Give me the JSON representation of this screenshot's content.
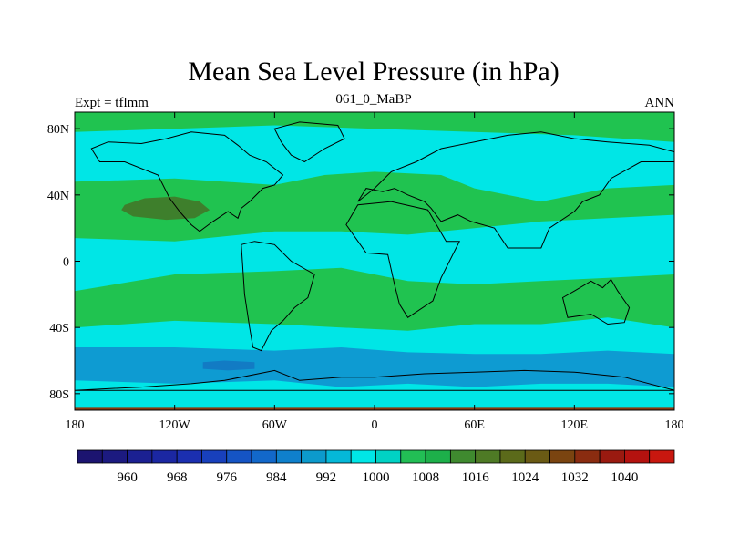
{
  "chart_data": {
    "type": "heatmap",
    "title": "Mean Sea Level Pressure (in hPa)",
    "left_label": "Expt = tflmm",
    "center_label": "061_0_MaBP",
    "right_label": "ANN",
    "x_axis": {
      "range": [
        -180,
        180
      ],
      "ticks": [
        -180,
        -120,
        -60,
        0,
        60,
        120,
        180
      ],
      "tick_labels": [
        "180",
        "120W",
        "60W",
        "0",
        "60E",
        "120E",
        "180"
      ]
    },
    "y_axis": {
      "range": [
        -90,
        90
      ],
      "ticks": [
        80,
        40,
        0,
        -40,
        -80
      ],
      "tick_labels": [
        "80N",
        "40N",
        "0",
        "40S",
        "80S"
      ]
    },
    "colorbar": {
      "units": "hPa",
      "levels": [
        956,
        960,
        964,
        968,
        972,
        976,
        980,
        984,
        988,
        992,
        996,
        1000,
        1004,
        1008,
        1012,
        1016,
        1020,
        1024,
        1028,
        1032,
        1036,
        1040,
        1044
      ],
      "colors": [
        "#1c1470",
        "#1c1a80",
        "#1b2092",
        "#1b27a2",
        "#1b2fb0",
        "#1840bc",
        "#1554c4",
        "#1268ca",
        "#0f80cc",
        "#0c9acc",
        "#05b8d8",
        "#00e6e6",
        "#00d2c4",
        "#22be55",
        "#1db04a",
        "#3f8a2f",
        "#4e7a25",
        "#5b6a1a",
        "#6a5a14",
        "#7a4410",
        "#8a2c10",
        "#9a1a10",
        "#b4120f",
        "#c8170f"
      ],
      "labels": [
        "960",
        "968",
        "976",
        "984",
        "992",
        "1000",
        "1008",
        "1016",
        "1024",
        "1032",
        "1040"
      ],
      "label_values": [
        960,
        968,
        976,
        984,
        992,
        1000,
        1008,
        1016,
        1024,
        1032,
        1040
      ]
    },
    "fields": [
      {
        "name": "subtropical-high-north",
        "level": 1004,
        "color": "#20c350",
        "lon": [
          -180,
          -120,
          -60,
          -30,
          0,
          40,
          60,
          100,
          140,
          180,
          180,
          140,
          100,
          60,
          20,
          -20,
          -60,
          -120,
          -180
        ],
        "lat": [
          48,
          50,
          46,
          52,
          54,
          52,
          44,
          36,
          44,
          46,
          28,
          26,
          24,
          20,
          16,
          18,
          18,
          12,
          14
        ]
      },
      {
        "name": "arctic-high",
        "level": 1004,
        "color": "#20c350",
        "lon": [
          -180,
          -120,
          -60,
          0,
          60,
          120,
          180,
          180,
          120,
          60,
          0,
          -60,
          -120,
          -180
        ],
        "lat": [
          90,
          90,
          90,
          90,
          90,
          90,
          90,
          72,
          76,
          78,
          80,
          82,
          80,
          78
        ]
      },
      {
        "name": "subtropical-high-south",
        "level": 1004,
        "color": "#20c350",
        "lon": [
          -180,
          -120,
          -60,
          -20,
          20,
          60,
          100,
          140,
          180,
          180,
          140,
          100,
          60,
          20,
          -20,
          -60,
          -120,
          -180
        ],
        "lat": [
          -18,
          -8,
          -6,
          -4,
          -12,
          -14,
          -12,
          -10,
          -8,
          -40,
          -34,
          -38,
          -38,
          -42,
          -40,
          -38,
          -36,
          -40
        ]
      },
      {
        "name": "north-pacific-high-core",
        "level": 1016,
        "color": "#3e7f2c",
        "lon": [
          -150,
          -138,
          -120,
          -105,
          -99,
          -108,
          -125,
          -145,
          -152
        ],
        "lat": [
          34,
          38,
          39,
          36,
          31,
          26,
          25,
          27,
          31
        ]
      },
      {
        "name": "southern-ocean-trough",
        "level": 992,
        "color": "#0e9bd2",
        "lon": [
          -180,
          -120,
          -60,
          -20,
          20,
          60,
          100,
          140,
          180,
          180,
          140,
          100,
          60,
          20,
          -20,
          -60,
          -120,
          -180
        ],
        "lat": [
          -52,
          -52,
          -54,
          -52,
          -55,
          -56,
          -56,
          -54,
          -56,
          -76,
          -74,
          -74,
          -76,
          -74,
          -76,
          -72,
          -74,
          -72
        ]
      },
      {
        "name": "southern-ocean-low-core",
        "level": 988,
        "color": "#127bc4",
        "lon": [
          -103,
          -90,
          -72,
          -72,
          -88,
          -103
        ],
        "lat": [
          -61,
          -60,
          -61,
          -65,
          -66,
          -65
        ]
      },
      {
        "name": "antarctic-rim",
        "level": 1016,
        "color": "#8a3a12",
        "lon": [
          -180,
          180,
          180,
          -180
        ],
        "lat": [
          -88,
          -88,
          -90,
          -90
        ]
      }
    ],
    "coastlines": [
      {
        "name": "north-america",
        "lon": [
          -170,
          -160,
          -140,
          -125,
          -110,
          -90,
          -82,
          -75,
          -65,
          -55,
          -60,
          -67,
          -75,
          -80,
          -82,
          -88,
          -97,
          -105,
          -110,
          -117,
          -123,
          -130,
          -150,
          -165,
          -170
        ],
        "lat": [
          68,
          72,
          71,
          74,
          78,
          76,
          70,
          64,
          60,
          52,
          46,
          44,
          36,
          32,
          26,
          30,
          24,
          18,
          22,
          30,
          38,
          52,
          60,
          60,
          68
        ]
      },
      {
        "name": "south-america",
        "lon": [
          -80,
          -72,
          -60,
          -50,
          -36,
          -40,
          -48,
          -55,
          -62,
          -68,
          -73,
          -75,
          -78,
          -80
        ],
        "lat": [
          10,
          12,
          10,
          0,
          -8,
          -22,
          -28,
          -36,
          -42,
          -54,
          -52,
          -40,
          -20,
          10
        ]
      },
      {
        "name": "greenland",
        "lon": [
          -60,
          -45,
          -22,
          -18,
          -30,
          -42,
          -50,
          -56,
          -60
        ],
        "lat": [
          80,
          84,
          82,
          74,
          68,
          60,
          64,
          72,
          80
        ]
      },
      {
        "name": "eurasia",
        "lon": [
          -10,
          0,
          10,
          25,
          40,
          60,
          80,
          100,
          120,
          140,
          165,
          180,
          180,
          160,
          142,
          135,
          125,
          120,
          105,
          100,
          80,
          72,
          58,
          50,
          40,
          34,
          30,
          20,
          12,
          5,
          -5,
          -10
        ],
        "lat": [
          36,
          44,
          54,
          60,
          68,
          72,
          76,
          78,
          74,
          72,
          70,
          66,
          60,
          60,
          50,
          40,
          36,
          30,
          20,
          8,
          8,
          20,
          24,
          28,
          24,
          32,
          36,
          40,
          44,
          42,
          44,
          36
        ]
      },
      {
        "name": "africa",
        "lon": [
          -17,
          -10,
          10,
          32,
          43,
          51,
          40,
          35,
          20,
          15,
          12,
          8,
          -5,
          -17
        ],
        "lat": [
          22,
          34,
          36,
          31,
          12,
          12,
          -10,
          -24,
          -34,
          -26,
          -14,
          4,
          5,
          22
        ]
      },
      {
        "name": "australia",
        "lon": [
          113,
          120,
          130,
          137,
          142,
          146,
          153,
          150,
          140,
          130,
          116,
          113
        ],
        "lat": [
          -22,
          -18,
          -12,
          -16,
          -11,
          -18,
          -28,
          -37,
          -38,
          -32,
          -34,
          -22
        ]
      },
      {
        "name": "antarctica",
        "lon": [
          -180,
          -140,
          -110,
          -90,
          -60,
          -45,
          -20,
          0,
          30,
          60,
          90,
          120,
          150,
          180
        ],
        "lat": [
          -78,
          -76,
          -74,
          -72,
          -66,
          -72,
          -70,
          -70,
          -68,
          -67,
          -66,
          -67,
          -70,
          -78
        ]
      }
    ]
  }
}
